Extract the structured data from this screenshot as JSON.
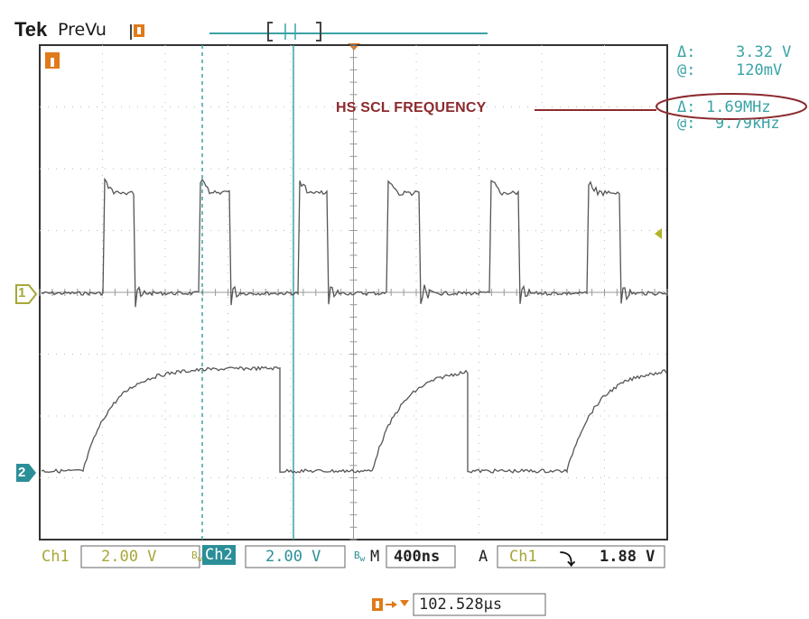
{
  "header": {
    "brand": "Tek",
    "mode": "PreVu"
  },
  "readouts": {
    "delta_v_symbol": "Δ:",
    "delta_v_value": "3.32 V",
    "at_v_symbol": "@:",
    "at_v_value": "120mV",
    "delta_t_symbol": "Δ:",
    "delta_t_value": "1.69MHz",
    "at_t_symbol": "@:",
    "at_t_value": "9.79kHz"
  },
  "annotation": {
    "label": "HS SCL FREQUENCY"
  },
  "channels": {
    "ch1_marker": "1",
    "ch2_marker": "2",
    "trigger_marker": "T"
  },
  "status": {
    "ch1_label": "Ch1",
    "ch1_scale": "2.00 V",
    "ch2_label": "Ch2",
    "ch2_scale": "2.00 V",
    "timebase_label": "M",
    "timebase_value": "400ns",
    "trigger_mode": "A",
    "trigger_source": "Ch1",
    "trigger_slope": "⤵",
    "trigger_level": "1.88 V",
    "trigger_position": "102.528µs"
  },
  "colors": {
    "trace": "#555555",
    "cursor": "#3aa3a6",
    "ch1": "#a7a738",
    "ch2": "#2b8f98",
    "trigger": "#e07a1a",
    "annotation": "#8c2a2e"
  }
}
